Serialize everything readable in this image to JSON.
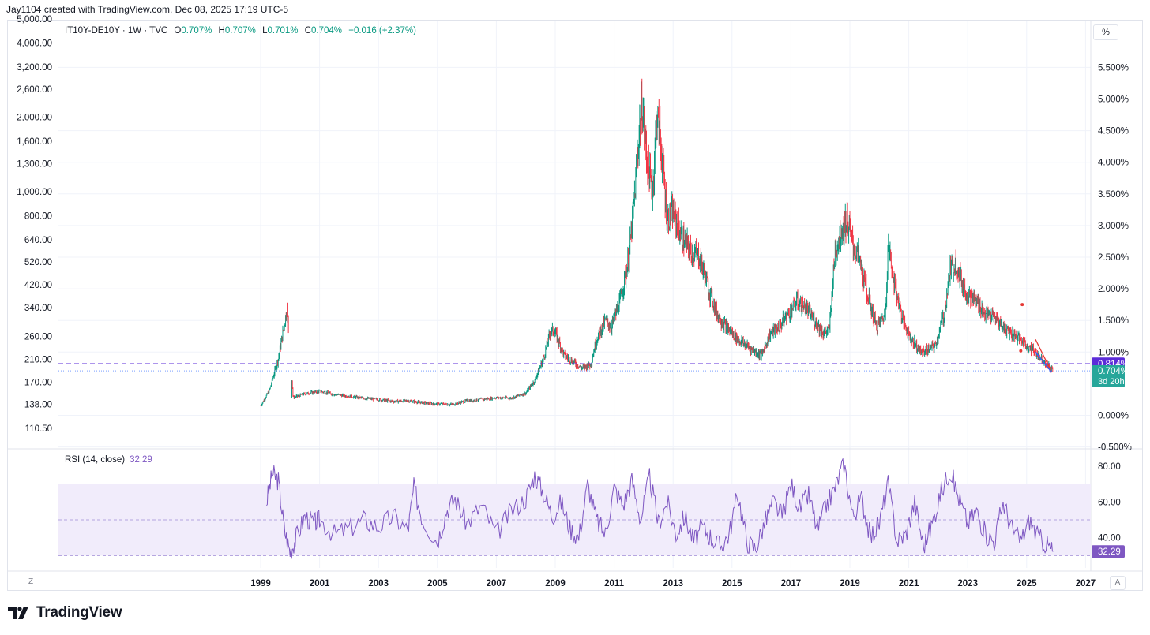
{
  "attribution": "Jay1104 created with TradingView.com, Dec 08, 2025 17:19 UTC-5",
  "legend": {
    "symbol": "IT10Y-DE10Y · 1W · TVC",
    "o_label": "O",
    "o_value": "0.707%",
    "h_label": "H",
    "h_value": "0.707%",
    "l_label": "L",
    "l_value": "0.701%",
    "c_label": "C",
    "c_value": "0.704%",
    "change": "+0.016 (+2.37%)"
  },
  "scale_button": "%",
  "rsi_legend": {
    "label": "RSI (14, close)",
    "value": "32.29"
  },
  "price_tags": {
    "line": "0.814%",
    "last": "0.704%",
    "countdown": "3d 20h",
    "rsi": "32.29"
  },
  "buttons": {
    "z": "Z",
    "a": "A"
  },
  "brand": "TradingView",
  "colors": {
    "up": "#089981",
    "down": "#f23645",
    "rsi": "#7e57c2",
    "line": "#5b2bd8",
    "band": "#f1ecfb"
  },
  "chart_data": {
    "type": "candlestick",
    "symbol": "IT10Y-DE10Y",
    "interval": "1W",
    "source": "TVC",
    "x_ticks": [
      "1999",
      "2001",
      "2003",
      "2005",
      "2007",
      "2009",
      "2011",
      "2013",
      "2015",
      "2017",
      "2019",
      "2021",
      "2023",
      "2025",
      "2027"
    ],
    "right_axis": {
      "unit": "%",
      "ticks": [
        "5.500%",
        "5.000%",
        "4.500%",
        "4.000%",
        "3.500%",
        "3.000%",
        "2.500%",
        "2.000%",
        "1.500%",
        "1.000%",
        "0.000%",
        "-0.500%"
      ],
      "ylim": [
        -0.5,
        5.6
      ]
    },
    "left_axis": {
      "ticks": [
        "5,000.00",
        "4,000.00",
        "3,200.00",
        "2,600.00",
        "2,000.00",
        "1,600.00",
        "1,300.00",
        "1,000.00",
        "800.00",
        "640.00",
        "520.00",
        "420.00",
        "340.00",
        "260.00",
        "210.00",
        "170.00",
        "138.00",
        "110.50"
      ],
      "scale": "log"
    },
    "series": [
      {
        "name": "IT10Y-DE10Y",
        "x": [
          1999.0,
          1999.3,
          1999.6,
          1999.9,
          2000.1,
          2000.5,
          2001.0,
          2001.5,
          2002.0,
          2002.5,
          2003.0,
          2003.5,
          2004.0,
          2004.5,
          2005.0,
          2005.5,
          2006.0,
          2006.5,
          2007.0,
          2007.5,
          2008.0,
          2008.3,
          2008.6,
          2008.85,
          2009.0,
          2009.3,
          2009.6,
          2009.9,
          2010.2,
          2010.4,
          2010.7,
          2010.9,
          2011.2,
          2011.5,
          2011.7,
          2011.85,
          2011.95,
          2012.1,
          2012.3,
          2012.45,
          2012.6,
          2012.8,
          2013.0,
          2013.3,
          2013.6,
          2013.9,
          2014.2,
          2014.5,
          2014.8,
          2015.0,
          2015.2,
          2015.5,
          2015.8,
          2016.0,
          2016.3,
          2016.6,
          2016.9,
          2017.2,
          2017.5,
          2017.8,
          2018.1,
          2018.3,
          2018.5,
          2018.7,
          2018.9,
          2019.1,
          2019.3,
          2019.6,
          2019.9,
          2020.2,
          2020.3,
          2020.5,
          2020.8,
          2021.1,
          2021.4,
          2021.7,
          2021.9,
          2022.2,
          2022.4,
          2022.6,
          2022.8,
          2023.0,
          2023.3,
          2023.6,
          2023.9,
          2024.2,
          2024.5,
          2024.8,
          2025.0,
          2025.3,
          2025.6,
          2025.9
        ],
        "close": [
          0.15,
          0.4,
          0.9,
          1.7,
          0.28,
          0.34,
          0.38,
          0.33,
          0.3,
          0.27,
          0.25,
          0.22,
          0.23,
          0.2,
          0.18,
          0.17,
          0.23,
          0.25,
          0.28,
          0.27,
          0.35,
          0.55,
          0.9,
          1.35,
          1.3,
          0.95,
          0.85,
          0.75,
          0.8,
          1.2,
          1.5,
          1.4,
          1.8,
          2.5,
          3.5,
          4.5,
          4.9,
          4.1,
          3.5,
          4.8,
          4.2,
          3.1,
          3.2,
          2.8,
          2.6,
          2.5,
          2.0,
          1.6,
          1.4,
          1.3,
          1.2,
          1.1,
          1.0,
          0.95,
          1.3,
          1.4,
          1.6,
          1.8,
          1.7,
          1.5,
          1.3,
          1.35,
          2.6,
          2.9,
          3.1,
          2.7,
          2.5,
          1.9,
          1.4,
          1.6,
          2.7,
          2.1,
          1.5,
          1.2,
          1.0,
          1.05,
          1.1,
          1.6,
          2.3,
          2.4,
          2.1,
          1.9,
          1.8,
          1.6,
          1.55,
          1.4,
          1.3,
          1.2,
          1.1,
          1.0,
          0.85,
          0.704
        ]
      }
    ],
    "horizontal_line": 0.814,
    "last_close": 0.704,
    "annotations": [
      {
        "type": "dot",
        "x": 2024.85,
        "y": 1.75
      },
      {
        "type": "dot",
        "x": 2024.8,
        "y": 1.02
      },
      {
        "type": "trend_line",
        "x1": 2025.3,
        "y1": 1.2,
        "x2": 2025.85,
        "y2": 0.68
      },
      {
        "type": "trend_line",
        "x1": 2025.3,
        "y1": 1.0,
        "x2": 2025.85,
        "y2": 0.68
      }
    ],
    "rsi": {
      "name": "RSI (14, close)",
      "last": 32.29,
      "ticks": [
        "80.00",
        "60.00",
        "40.00"
      ],
      "upper_band": 70,
      "middle": 50,
      "lower_band": 30,
      "x": [
        1999.2,
        1999.4,
        1999.6,
        1999.8,
        2000.0,
        2000.2,
        2000.5,
        2000.8,
        2001.0,
        2001.5,
        2002.0,
        2002.5,
        2003.0,
        2003.5,
        2004.0,
        2004.2,
        2004.5,
        2005.0,
        2005.3,
        2005.6,
        2006.0,
        2006.5,
        2007.0,
        2007.5,
        2008.0,
        2008.3,
        2008.6,
        2008.9,
        2009.2,
        2009.5,
        2009.8,
        2010.1,
        2010.4,
        2010.7,
        2011.0,
        2011.3,
        2011.6,
        2011.9,
        2012.2,
        2012.5,
        2012.8,
        2013.1,
        2013.4,
        2013.7,
        2014.0,
        2014.3,
        2014.6,
        2014.9,
        2015.2,
        2015.5,
        2015.8,
        2016.1,
        2016.4,
        2016.7,
        2017.0,
        2017.3,
        2017.6,
        2017.9,
        2018.2,
        2018.5,
        2018.8,
        2019.1,
        2019.4,
        2019.7,
        2020.0,
        2020.3,
        2020.6,
        2020.9,
        2021.2,
        2021.5,
        2021.8,
        2022.1,
        2022.4,
        2022.7,
        2023.0,
        2023.3,
        2023.6,
        2023.9,
        2024.2,
        2024.5,
        2024.8,
        2025.1,
        2025.4,
        2025.7,
        2025.9
      ],
      "values": [
        60,
        76,
        72,
        45,
        32,
        40,
        52,
        48,
        50,
        42,
        45,
        50,
        46,
        52,
        44,
        68,
        50,
        38,
        55,
        62,
        48,
        58,
        42,
        55,
        62,
        75,
        65,
        52,
        60,
        45,
        40,
        70,
        50,
        42,
        68,
        58,
        72,
        50,
        74,
        48,
        60,
        42,
        52,
        38,
        46,
        40,
        35,
        42,
        65,
        38,
        34,
        48,
        60,
        52,
        70,
        56,
        64,
        44,
        58,
        68,
        82,
        52,
        62,
        40,
        48,
        70,
        38,
        42,
        60,
        35,
        48,
        66,
        78,
        62,
        48,
        55,
        42,
        38,
        60,
        45,
        38,
        50,
        40,
        36,
        32.29
      ]
    }
  }
}
